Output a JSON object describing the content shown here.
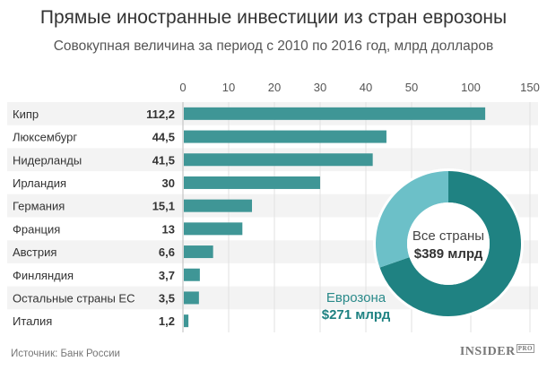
{
  "header": {
    "title": "Прямые иностранные инвестиции из стран еврозоны",
    "subtitle": "Совокупная величина за период с 2010 по 2016 год, млрд долларов"
  },
  "footer": {
    "source": "Источник: Банк России",
    "logo": "INSIDER",
    "logo_badge": "PRO"
  },
  "chart_data": [
    {
      "type": "bar",
      "orientation": "horizontal",
      "categories": [
        "Кипр",
        "Люксембург",
        "Нидерланды",
        "Ирландия",
        "Германия",
        "Франция",
        "Австрия",
        "Финляндия",
        "Остальные страны ЕС",
        "Италия"
      ],
      "values": [
        112.2,
        44.5,
        41.5,
        30,
        15.1,
        13,
        6.6,
        3.7,
        3.5,
        1.2
      ],
      "value_labels": [
        "112,2",
        "44,5",
        "41,5",
        "30",
        "15,1",
        "13",
        "6,6",
        "3,7",
        "3,5",
        "1,2"
      ],
      "x_ticks": [
        "0",
        "10",
        "20",
        "30",
        "40",
        "50",
        "100",
        "150"
      ],
      "x_tick_values": [
        0,
        10,
        20,
        30,
        40,
        50,
        100,
        150
      ],
      "xlim": [
        0,
        150
      ],
      "scale_note": "broken scale: 0-50 linear, then compressed 50-150",
      "axis_position": "top",
      "grid": true,
      "bar_color": "#3f9696"
    },
    {
      "type": "pie",
      "style": "donut",
      "center_label": "Все страны",
      "center_value": "$389 млрд",
      "total": 389,
      "slices": [
        {
          "name": "Еврозона",
          "value": 271,
          "label": "$271 млрд",
          "color": "#1f8282"
        },
        {
          "name": "",
          "value": 118,
          "color": "#6cc0c8"
        }
      ]
    }
  ]
}
